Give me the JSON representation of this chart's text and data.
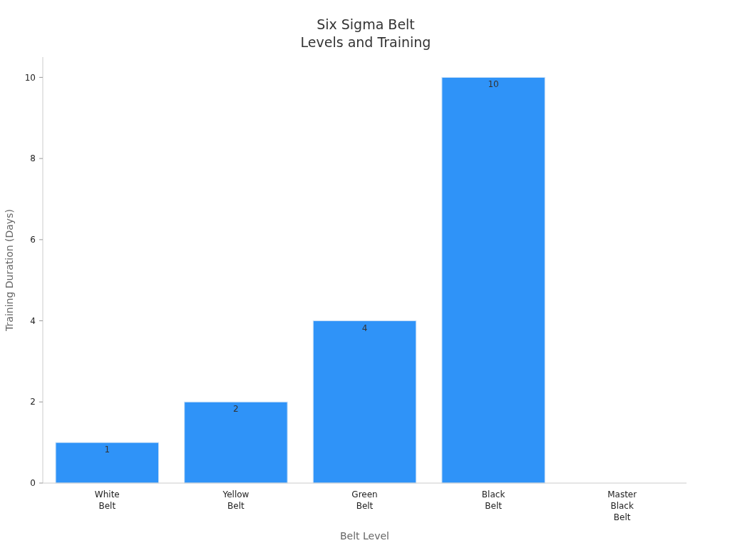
{
  "chart_data": {
    "type": "bar",
    "title": "Six Sigma Belt\nLevels and Training",
    "xlabel": "Belt Level",
    "ylabel": "Training Duration (Days)",
    "categories": [
      "White Belt",
      "Yellow Belt",
      "Green Belt",
      "Black Belt",
      "Master Black Belt"
    ],
    "values": [
      1,
      2,
      4,
      10,
      null
    ],
    "color": "#2f93f8",
    "ylim": [
      0,
      10.5
    ],
    "yticks": [
      0,
      2,
      4,
      6,
      8,
      10
    ],
    "grid": false,
    "data_labels": true
  }
}
